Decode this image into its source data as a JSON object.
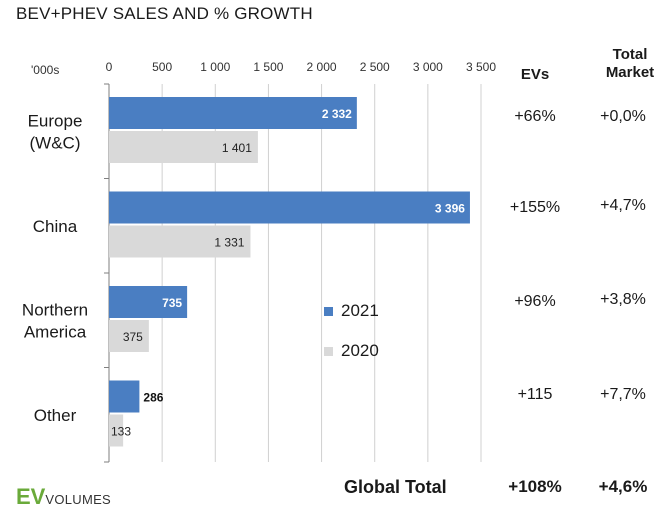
{
  "title": "BEV+PHEV SALES AND % GROWTH",
  "headers": {
    "unit": "'000s",
    "evs": "EVs",
    "total_market": "Total Market"
  },
  "growth": [
    {
      "ev": "+66%",
      "total": "+0,0%"
    },
    {
      "ev": "+155%",
      "total": "+4,7%"
    },
    {
      "ev": "+96%",
      "total": "+3,8%"
    },
    {
      "ev": "+115",
      "total": "+7,7%"
    }
  ],
  "global_total": {
    "label": "Global Total",
    "ev": "+108%",
    "total": "+4,6%"
  },
  "logo": {
    "mark": "EV",
    "text": "VOLUMES"
  },
  "colors": {
    "s2021": "#4a7ec2",
    "s2020": "#d9d9d9",
    "grid": "#d0d0d0",
    "logo": "#6aaa3a"
  },
  "chart_data": {
    "type": "bar",
    "orientation": "horizontal",
    "categories": [
      "Europe (W&C)",
      "China",
      "Northern America",
      "Other"
    ],
    "series": [
      {
        "name": "2021",
        "values": [
          2332,
          3396,
          735,
          286
        ],
        "labels": [
          "2 332",
          "3 396",
          "735",
          "286"
        ]
      },
      {
        "name": "2020",
        "values": [
          1401,
          1331,
          375,
          133
        ],
        "labels": [
          "1 401",
          "1 331",
          "375",
          "133"
        ]
      }
    ],
    "xlim": [
      0,
      3500
    ],
    "ticks": [
      0,
      500,
      1000,
      1500,
      2000,
      2500,
      3000,
      3500
    ],
    "tick_labels": [
      "0",
      "500",
      "1 000",
      "1 500",
      "2 000",
      "2 500",
      "3 000",
      "3 500"
    ],
    "grid": true,
    "legend_position": "center"
  }
}
